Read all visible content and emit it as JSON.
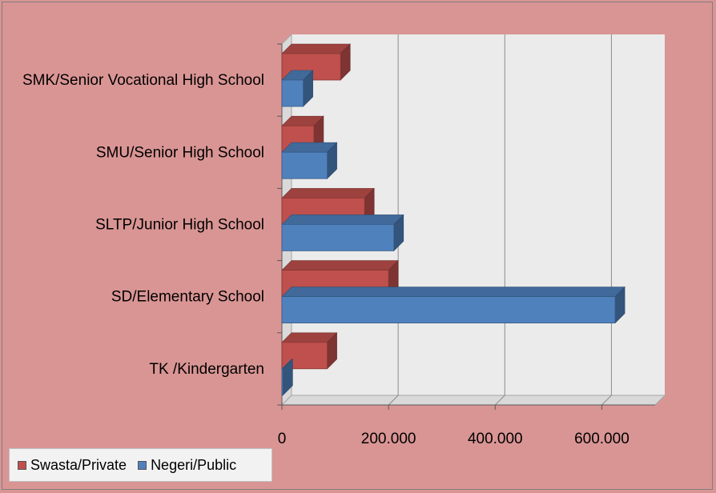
{
  "chart_data": {
    "type": "bar",
    "orientation": "horizontal",
    "style": "3d-clustered",
    "categories": [
      "SMK/Senior Vocational High  School",
      "SMU/Senior High School",
      "SLTP/Junior High School",
      "SD/Elementary School",
      "TK /Kindergarten"
    ],
    "series": [
      {
        "name": "Swasta/Private",
        "color": "#c0504d",
        "values": [
          110000,
          60000,
          155000,
          200000,
          85000
        ]
      },
      {
        "name": "Negeri/Public",
        "color": "#4f81bd",
        "values": [
          40000,
          85000,
          210000,
          625000,
          2000
        ]
      }
    ],
    "xlim": [
      0,
      700000
    ],
    "x_ticks": [
      0,
      200000,
      400000,
      600000
    ],
    "x_tick_labels": [
      "0",
      "200.000",
      "400.000",
      "600.000"
    ],
    "grid": true,
    "legend_position": "bottom-left",
    "title": "",
    "xlabel": "",
    "ylabel": ""
  }
}
